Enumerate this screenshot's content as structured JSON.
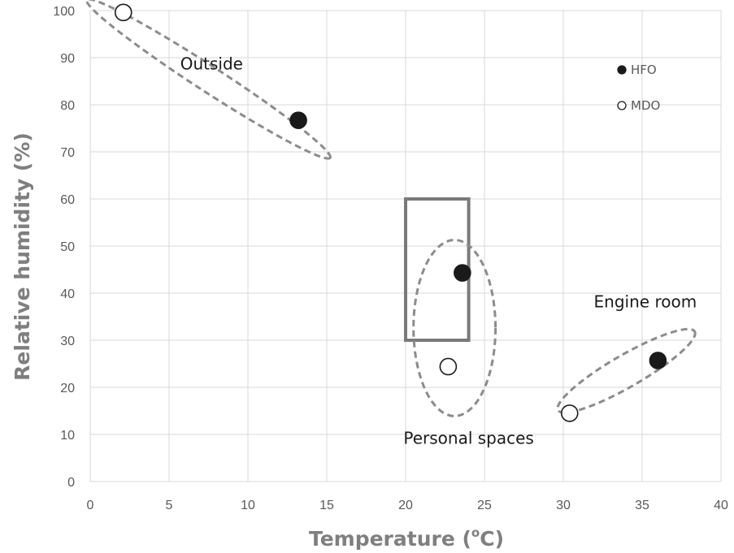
{
  "chart_data": {
    "type": "scatter",
    "title": "",
    "xlabel": "Temperature (",
    "xlabel_sup": "o",
    "xlabel_tail": "C)",
    "ylabel": "Relative humidity (%)",
    "xlim": [
      0,
      40
    ],
    "ylim": [
      0,
      100
    ],
    "x_ticks": [
      "0",
      "5",
      "10",
      "15",
      "20",
      "25",
      "30",
      "35",
      "40"
    ],
    "y_ticks": [
      "0",
      "10",
      "20",
      "30",
      "40",
      "50",
      "60",
      "70",
      "80",
      "90",
      "100"
    ],
    "grid": true,
    "legend_position": "top-right",
    "series": [
      {
        "name": "HFO",
        "marker": "filled-circle",
        "color": "#1a1a1a",
        "points": [
          {
            "x": 13.2,
            "y": 76.7
          },
          {
            "x": 23.6,
            "y": 44.3
          },
          {
            "x": 36.0,
            "y": 25.7
          }
        ]
      },
      {
        "name": "MDO",
        "marker": "open-circle",
        "color": "#1a1a1a",
        "points": [
          {
            "x": 2.1,
            "y": 99.6
          },
          {
            "x": 22.7,
            "y": 24.4
          },
          {
            "x": 30.4,
            "y": 14.5
          }
        ]
      }
    ],
    "annotations": [
      {
        "text": "Outside",
        "x": 7.7,
        "y": 87.5
      },
      {
        "text": "Personal spaces",
        "x": 24.0,
        "y": 8.0
      },
      {
        "text": "Engine room",
        "x": 35.2,
        "y": 37.0
      }
    ],
    "groups": [
      {
        "label": "Outside",
        "cx": 7.5,
        "cy": 85.5,
        "rx": 9.2,
        "ry": 2.7,
        "angle_deg": 33
      },
      {
        "label": "Personal spaces",
        "cx": 23.1,
        "cy": 32.6,
        "rx": 2.6,
        "ry": 18.7,
        "angle_deg": 0
      },
      {
        "label": "Engine room",
        "cx": 34.0,
        "cy": 23.5,
        "rx": 5.0,
        "ry": 3.4,
        "angle_deg": -30
      }
    ],
    "comfort_zone": {
      "x0": 20,
      "x1": 24,
      "y0": 30,
      "y1": 60
    }
  }
}
